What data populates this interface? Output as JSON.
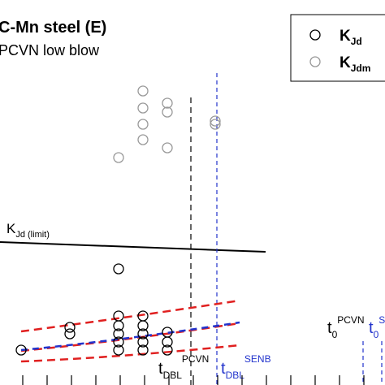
{
  "chart_data": {
    "type": "scatter",
    "title": "C-Mn steel (E)",
    "subtitle": "PCVN low blow",
    "xlim": [
      0,
      474
    ],
    "ylim": [
      0,
      474
    ],
    "xticks": [
      28,
      58,
      88,
      118,
      148,
      178,
      208,
      238,
      268,
      298,
      328,
      358,
      388,
      418,
      448
    ],
    "series": [
      {
        "label_main": "K",
        "label_sub": "Jd",
        "color": "#000000",
        "x": [
          146,
          26,
          86,
          86,
          146,
          146,
          146,
          146,
          146,
          176,
          176,
          176,
          176,
          176,
          206,
          206,
          206
        ],
        "values": [
          143,
          43,
          71,
          63,
          85,
          73,
          63,
          53,
          43,
          85,
          73,
          63,
          53,
          43,
          65,
          53,
          43
        ]
      },
      {
        "label_main": "K",
        "label_sub": "Jdm",
        "color": "#999999",
        "x": [
          146,
          176,
          176,
          176,
          176,
          206,
          206,
          206,
          265,
          265
        ],
        "values": [
          280,
          362,
          341,
          321,
          302,
          347,
          336,
          292,
          325,
          321
        ]
      }
    ],
    "annotations": [
      {
        "base": "K",
        "sub": "Jd (limit)"
      },
      {
        "base": "t",
        "sub": "DBL",
        "sup": "PCVN"
      },
      {
        "base": "t",
        "sub": "DBL",
        "sup": "SENB"
      },
      {
        "base": "t",
        "sub": "0",
        "sup": "PCVN"
      },
      {
        "base": "t",
        "sub": "0",
        "sup": "S"
      }
    ]
  }
}
